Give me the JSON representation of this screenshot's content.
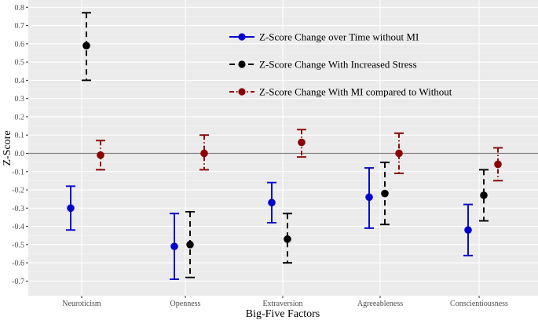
{
  "chart_data": {
    "type": "scatter",
    "subtype": "point-with-error-bars",
    "xlabel": "Big-Five Factors",
    "ylabel": "Z-Score",
    "categories": [
      "Neuroticism",
      "Openness",
      "Extraversion",
      "Agreeableness",
      "Conscientiousness"
    ],
    "ylim": [
      -0.78,
      0.84
    ],
    "yticks": [
      -0.7,
      -0.6,
      -0.5,
      -0.4,
      -0.3,
      -0.2,
      -0.1,
      0,
      0.1,
      0.2,
      0.3,
      0.4,
      0.5,
      0.6,
      0.7,
      0.8
    ],
    "ytick_labels": [
      "-0.7",
      "-0.6",
      "-0.5",
      "-0.4",
      "-0.3",
      "-0.2",
      "-0.1",
      "0.0",
      "0.1",
      "0.2",
      "0.3",
      "0.4",
      "0.5",
      "0.6",
      "0.7",
      "0.8"
    ],
    "reference_line": 0,
    "grid": true,
    "legend_position": "top-right",
    "series": [
      {
        "name": "Z-Score Change over Time without MI",
        "color": "#0000cc",
        "line_style": "solid",
        "values": [
          -0.3,
          -0.51,
          -0.27,
          -0.24,
          -0.42
        ],
        "lower": [
          -0.42,
          -0.69,
          -0.38,
          -0.41,
          -0.56
        ],
        "upper": [
          -0.18,
          -0.33,
          -0.16,
          -0.08,
          -0.28
        ]
      },
      {
        "name": "Z-Score Change With Increased Stress",
        "color": "#000000",
        "line_style": "dashed",
        "values": [
          0.59,
          -0.5,
          -0.47,
          -0.22,
          -0.23
        ],
        "lower": [
          0.4,
          -0.68,
          -0.6,
          -0.39,
          -0.37
        ],
        "upper": [
          0.77,
          -0.32,
          -0.33,
          -0.05,
          -0.09
        ]
      },
      {
        "name": "Z-Score Change With MI compared to Without",
        "color": "#8b0000",
        "line_style": "dashdot",
        "values": [
          -0.01,
          0.0,
          0.06,
          0.0,
          -0.06
        ],
        "lower": [
          -0.09,
          -0.09,
          -0.02,
          -0.11,
          -0.15
        ],
        "upper": [
          0.07,
          0.1,
          0.13,
          0.11,
          0.03
        ]
      }
    ]
  }
}
